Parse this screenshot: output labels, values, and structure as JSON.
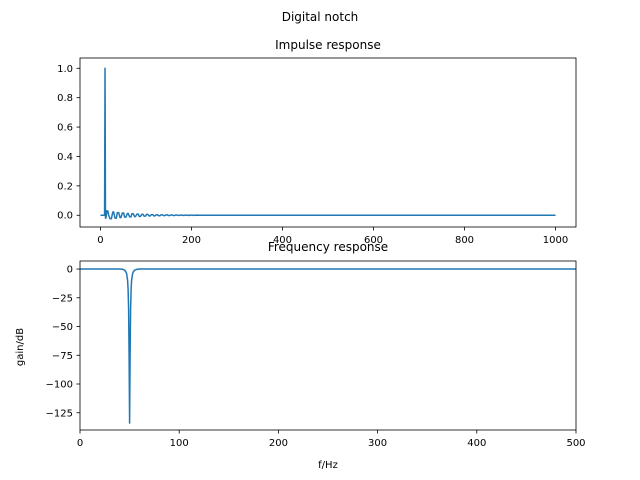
{
  "figure": {
    "suptitle": "Digital notch"
  },
  "chart_data": [
    {
      "type": "line",
      "title": "Impulse response",
      "xlabel": "",
      "ylabel": "",
      "xlim": [
        -45,
        1045
      ],
      "ylim": [
        -0.08,
        1.07
      ],
      "xticks": [
        0,
        200,
        400,
        600,
        800,
        1000
      ],
      "xtick_labels": [
        "0",
        "200",
        "400",
        "600",
        "800",
        "1000"
      ],
      "yticks": [
        0.0,
        0.2,
        0.4,
        0.6,
        0.8,
        1.0
      ],
      "ytick_labels": [
        "0.0",
        "0.2",
        "0.4",
        "0.6",
        "0.8",
        "1.0"
      ],
      "grid": false,
      "series": [
        {
          "color": "#1f77b4",
          "x": [
            0,
            9,
            10,
            11,
            12,
            14,
            16,
            18,
            21,
            24,
            27,
            29,
            32,
            35,
            37,
            40,
            43,
            45,
            48,
            51,
            53,
            56,
            59,
            61,
            64,
            67,
            69,
            72,
            75,
            77,
            80,
            83,
            85,
            88,
            91,
            93,
            96,
            99,
            101,
            104,
            107,
            109,
            112,
            115,
            117,
            120,
            123,
            125,
            128,
            131,
            133,
            136,
            139,
            141,
            144,
            147,
            149,
            152,
            155,
            157,
            160,
            163,
            165,
            168,
            171,
            173,
            176,
            179,
            181,
            184,
            187,
            189,
            192,
            195,
            197,
            200,
            205,
            210,
            220,
            240,
            260,
            300,
            1000
          ],
          "y": [
            0,
            0,
            1.0,
            -0.02,
            -0.02,
            0.03,
            0.03,
            0.0,
            -0.024,
            -0.024,
            0.022,
            0.022,
            -0.02,
            -0.02,
            0.018,
            0.018,
            -0.016,
            -0.016,
            0.015,
            0.015,
            -0.013,
            -0.013,
            0.012,
            0.012,
            -0.011,
            -0.011,
            0.01,
            0.01,
            -0.009,
            -0.009,
            0.008,
            0.008,
            -0.0075,
            -0.0075,
            0.007,
            0.007,
            -0.0062,
            -0.0062,
            0.0056,
            0.0056,
            -0.005,
            -0.005,
            0.0045,
            0.0045,
            -0.004,
            -0.004,
            0.0036,
            0.0036,
            -0.0032,
            -0.0032,
            0.0029,
            0.0029,
            -0.0026,
            -0.0026,
            0.0023,
            0.0023,
            -0.002,
            -0.002,
            0.0018,
            0.0018,
            -0.0016,
            -0.0016,
            0.0014,
            0.0014,
            -0.0012,
            -0.0012,
            0.0011,
            0.0011,
            -0.001,
            -0.001,
            0.0009,
            0.0009,
            -0.0008,
            -0.0008,
            0.0007,
            0.0007,
            -0.0005,
            0.0004,
            0.0002,
            0.0001,
            0,
            0,
            0
          ]
        }
      ]
    },
    {
      "type": "line",
      "title": "Frequency response",
      "xlabel": "f/Hz",
      "ylabel": "gain/dB",
      "xlim": [
        0,
        500
      ],
      "ylim": [
        -140,
        7
      ],
      "xticks": [
        0,
        100,
        200,
        300,
        400,
        500
      ],
      "xtick_labels": [
        "0",
        "100",
        "200",
        "300",
        "400",
        "500"
      ],
      "yticks": [
        0,
        -25,
        -50,
        -75,
        -100,
        -125
      ],
      "ytick_labels": [
        "0",
        "−25",
        "−50",
        "−75",
        "−100",
        "−125"
      ],
      "grid": false,
      "series": [
        {
          "color": "#1f77b4",
          "x": [
            0,
            40,
            43,
            44,
            45,
            46,
            47,
            48,
            48.5,
            49,
            49.5,
            49.8,
            50,
            50.2,
            50.5,
            51,
            51.5,
            52,
            53,
            54,
            55,
            57,
            60,
            500
          ],
          "y": [
            0,
            0,
            -0.2,
            -0.5,
            -1,
            -2,
            -4,
            -10,
            -18,
            -35,
            -75,
            -110,
            -134,
            -110,
            -75,
            -35,
            -18,
            -10,
            -4,
            -2,
            -1,
            -0.3,
            0,
            0
          ]
        }
      ]
    }
  ]
}
